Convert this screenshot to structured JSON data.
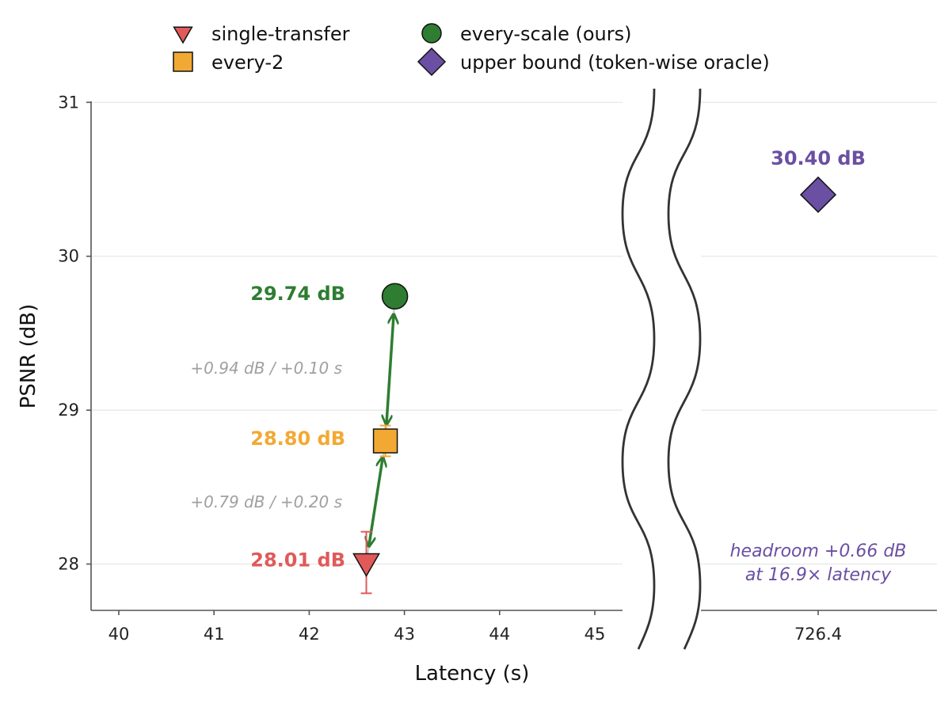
{
  "chart_data": {
    "type": "scatter",
    "xlabel": "Latency (s)",
    "ylabel": "PSNR (dB)",
    "broken_x_axis": true,
    "grid": "horizontal",
    "ylim": [
      27.7,
      31
    ],
    "x_ticks_left": [
      "40",
      "41",
      "42",
      "43",
      "44",
      "45"
    ],
    "x_ticks_right": [
      "726.4"
    ],
    "y_ticks": [
      "28",
      "29",
      "30",
      "31"
    ],
    "legend_position": "top",
    "series": [
      {
        "name": "single-transfer",
        "marker": "triangle-down",
        "color": "#e05a5a",
        "x": 42.6,
        "y": 28.01,
        "err": 0.2,
        "label": "28.01 dB"
      },
      {
        "name": "every-2",
        "marker": "square",
        "color": "#f2a933",
        "x": 42.8,
        "y": 28.8,
        "err": 0.1,
        "label": "28.80 dB"
      },
      {
        "name": "every-scale (ours)",
        "marker": "circle",
        "color": "#2e7d32",
        "x": 42.9,
        "y": 29.74,
        "err": 0,
        "label": "29.74 dB"
      },
      {
        "name": "upper bound (token-wise oracle)",
        "marker": "diamond",
        "color": "#6a4fa3",
        "x": 726.4,
        "y": 30.4,
        "err": 0,
        "label": "30.40 dB"
      }
    ],
    "annotations": {
      "delta_1": "+0.79 dB / +0.20 s",
      "delta_2": "+0.94 dB / +0.10 s",
      "headroom_line1": "headroom +0.66 dB",
      "headroom_line2": "at 16.9× latency"
    }
  }
}
